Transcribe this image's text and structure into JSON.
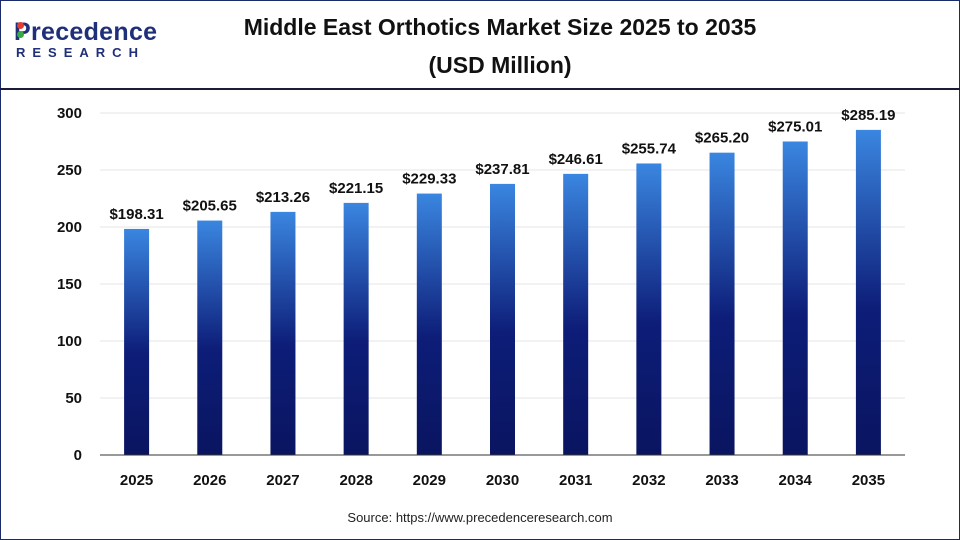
{
  "brand": {
    "name": "Precedence",
    "subtitle": "RESEARCH"
  },
  "header": {
    "title_line1": "Middle East Orthotics Market Size 2025 to 2035",
    "title_line2": "(USD Million)"
  },
  "footer": {
    "source": "Source: https://www.precedenceresearch.com"
  },
  "colors": {
    "bar_top": "#3a86e0",
    "bar_bottom": "#0a1560",
    "grid": "#e6e6e6",
    "axis": "#333333"
  },
  "chart_data": {
    "type": "bar",
    "title": "Middle East Orthotics Market Size 2025 to 2035 (USD Million)",
    "categories": [
      "2025",
      "2026",
      "2027",
      "2028",
      "2029",
      "2030",
      "2031",
      "2032",
      "2033",
      "2034",
      "2035"
    ],
    "values": [
      198.31,
      205.65,
      213.26,
      221.15,
      229.33,
      237.81,
      246.61,
      255.74,
      265.2,
      275.01,
      285.19
    ],
    "data_labels": [
      "$198.31",
      "$205.65",
      "$213.26",
      "$221.15",
      "$229.33",
      "$237.81",
      "$246.61",
      "$255.74",
      "$265.20",
      "$275.01",
      "$285.19"
    ],
    "yticks": [
      0,
      50,
      100,
      150,
      200,
      250,
      300
    ],
    "ylim": [
      0,
      300
    ],
    "xlabel": "",
    "ylabel": "",
    "grid": true,
    "legend": "none"
  }
}
